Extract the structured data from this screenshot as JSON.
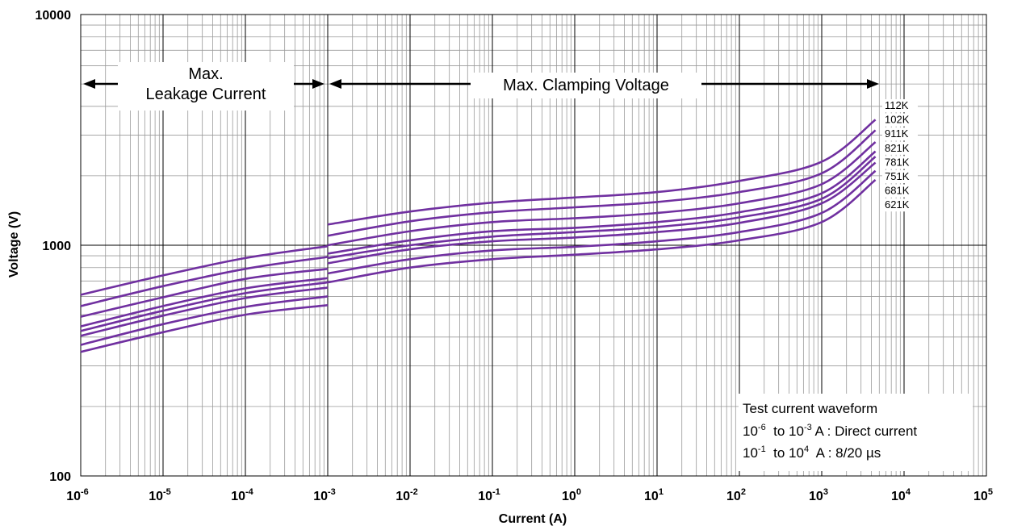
{
  "chart_data": {
    "type": "line",
    "xlabel": "Current (A)",
    "ylabel": "Voltage (V)",
    "x_scale": "log",
    "y_scale": "log",
    "xlim": [
      1e-06,
      100000.0
    ],
    "ylim": [
      100,
      10000
    ],
    "grid": true,
    "line_color": "#7030A0",
    "y_ticks": [
      {
        "value": 100,
        "label": "100"
      },
      {
        "value": 1000,
        "label": "1000"
      },
      {
        "value": 10000,
        "label": "10000"
      }
    ],
    "x_ticks": [
      {
        "value": 1e-06,
        "base": "10",
        "exp": "-6"
      },
      {
        "value": 1e-05,
        "base": "10",
        "exp": "-5"
      },
      {
        "value": 0.0001,
        "base": "10",
        "exp": "-4"
      },
      {
        "value": 0.001,
        "base": "10",
        "exp": "-3"
      },
      {
        "value": 0.01,
        "base": "10",
        "exp": "-2"
      },
      {
        "value": 0.1,
        "base": "10",
        "exp": "-1"
      },
      {
        "value": 1,
        "base": "10",
        "exp": "0"
      },
      {
        "value": 10,
        "base": "10",
        "exp": "1"
      },
      {
        "value": 100,
        "base": "10",
        "exp": "2"
      },
      {
        "value": 1000,
        "base": "10",
        "exp": "3"
      },
      {
        "value": 10000,
        "base": "10",
        "exp": "4"
      },
      {
        "value": 100000,
        "base": "10",
        "exp": "5"
      }
    ],
    "annotations": {
      "leakage_line1": "Max.",
      "leakage_line2": "Leakage Current",
      "clamping": "Max. Clamping Voltage"
    },
    "test_note": {
      "title": "Test current waveform",
      "line1_a": "10",
      "line1_a_exp": "-6",
      "line1_b": "  to 10",
      "line1_b_exp": "-3",
      "line1_c": " A : Direct current",
      "line2_a": "10",
      "line2_a_exp": "-1",
      "line2_b": "  to 10",
      "line2_b_exp": "4",
      "line2_c": "  A : 8/20 µs"
    },
    "series": [
      {
        "name": "112K",
        "leakage": {
          "x": [
            1e-06,
            1e-05,
            0.0001,
            0.001
          ],
          "y": [
            610,
            740,
            880,
            990
          ]
        },
        "clamping": {
          "x": [
            0.001,
            0.01,
            0.1,
            1,
            10,
            100,
            1000,
            4500
          ],
          "y": [
            1230,
            1400,
            1530,
            1610,
            1700,
            1900,
            2300,
            3500
          ]
        }
      },
      {
        "name": "102K",
        "leakage": {
          "x": [
            1e-06,
            1e-05,
            0.0001,
            0.001
          ],
          "y": [
            545,
            665,
            790,
            890
          ]
        },
        "clamping": {
          "x": [
            0.001,
            0.01,
            0.1,
            1,
            10,
            100,
            1000,
            4500
          ],
          "y": [
            1100,
            1270,
            1390,
            1460,
            1540,
            1700,
            2050,
            3150
          ]
        }
      },
      {
        "name": "911K",
        "leakage": {
          "x": [
            1e-06,
            1e-05,
            0.0001,
            0.001
          ],
          "y": [
            490,
            595,
            715,
            790
          ]
        },
        "clamping": {
          "x": [
            0.001,
            0.01,
            0.1,
            1,
            10,
            100,
            1000,
            4500
          ],
          "y": [
            1000,
            1150,
            1260,
            1310,
            1380,
            1520,
            1840,
            2800
          ]
        }
      },
      {
        "name": "821K",
        "leakage": {
          "x": [
            1e-06,
            1e-05,
            0.0001,
            0.001
          ],
          "y": [
            445,
            545,
            650,
            720
          ]
        },
        "clamping": {
          "x": [
            0.001,
            0.01,
            0.1,
            1,
            10,
            100,
            1000,
            4500
          ],
          "y": [
            920,
            1050,
            1150,
            1190,
            1260,
            1390,
            1680,
            2550
          ]
        }
      },
      {
        "name": "781K",
        "leakage": {
          "x": [
            1e-06,
            1e-05,
            0.0001,
            0.001
          ],
          "y": [
            425,
            520,
            620,
            690
          ]
        },
        "clamping": {
          "x": [
            0.001,
            0.01,
            0.1,
            1,
            10,
            100,
            1000,
            4500
          ],
          "y": [
            880,
            1000,
            1090,
            1140,
            1200,
            1320,
            1590,
            2420
          ]
        }
      },
      {
        "name": "751K",
        "leakage": {
          "x": [
            1e-06,
            1e-05,
            0.0001,
            0.001
          ],
          "y": [
            405,
            495,
            590,
            655
          ]
        },
        "clamping": {
          "x": [
            0.001,
            0.01,
            0.1,
            1,
            10,
            100,
            1000,
            4500
          ],
          "y": [
            835,
            960,
            1040,
            1080,
            1140,
            1250,
            1520,
            2280
          ]
        }
      },
      {
        "name": "681K",
        "leakage": {
          "x": [
            1e-06,
            1e-05,
            0.0001,
            0.001
          ],
          "y": [
            370,
            455,
            540,
            600
          ]
        },
        "clamping": {
          "x": [
            0.001,
            0.01,
            0.1,
            1,
            10,
            100,
            1000,
            4500
          ],
          "y": [
            755,
            870,
            950,
            985,
            1040,
            1140,
            1380,
            2100
          ]
        }
      },
      {
        "name": "621K",
        "leakage": {
          "x": [
            1e-06,
            1e-05,
            0.0001,
            0.001
          ],
          "y": [
            345,
            420,
            500,
            550
          ]
        },
        "clamping": {
          "x": [
            0.001,
            0.01,
            0.1,
            1,
            10,
            100,
            1000,
            4500
          ],
          "y": [
            690,
            800,
            870,
            910,
            960,
            1050,
            1260,
            1920
          ]
        }
      }
    ]
  }
}
